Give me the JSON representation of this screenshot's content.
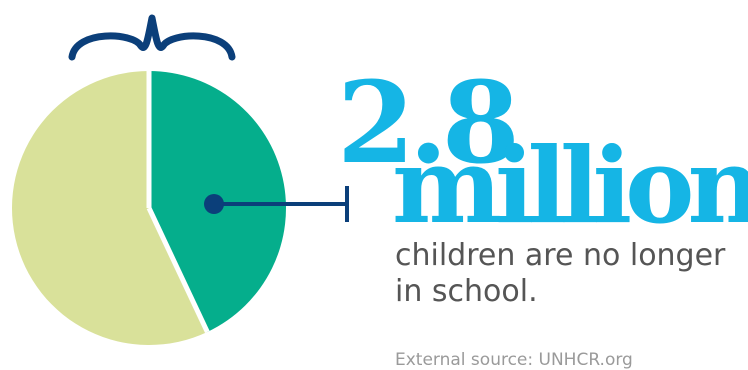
{
  "chart_data": {
    "type": "pie",
    "values": [
      57,
      43
    ],
    "highlighted_index": 1,
    "start": "12 o'clock",
    "direction": "clockwise",
    "legend": "none"
  },
  "headline": {
    "number": "2.8",
    "unit": "million"
  },
  "caption": "children are no longer in school.",
  "source": "External source: UNHCR.org",
  "icons": {
    "brace": "curly-brace-icon",
    "pointer": "dot-line-pointer-icon"
  },
  "colors": {
    "background": "#ffffff",
    "slice_main": "#d9e19a",
    "slice_highlight": "#05ae8c",
    "slice_separator": "#ffffff",
    "brace": "#0b3f7a",
    "pointer": "#0b3f7a",
    "headline": "#15b5e5",
    "caption": "#555555",
    "source": "#9a9a9a"
  }
}
